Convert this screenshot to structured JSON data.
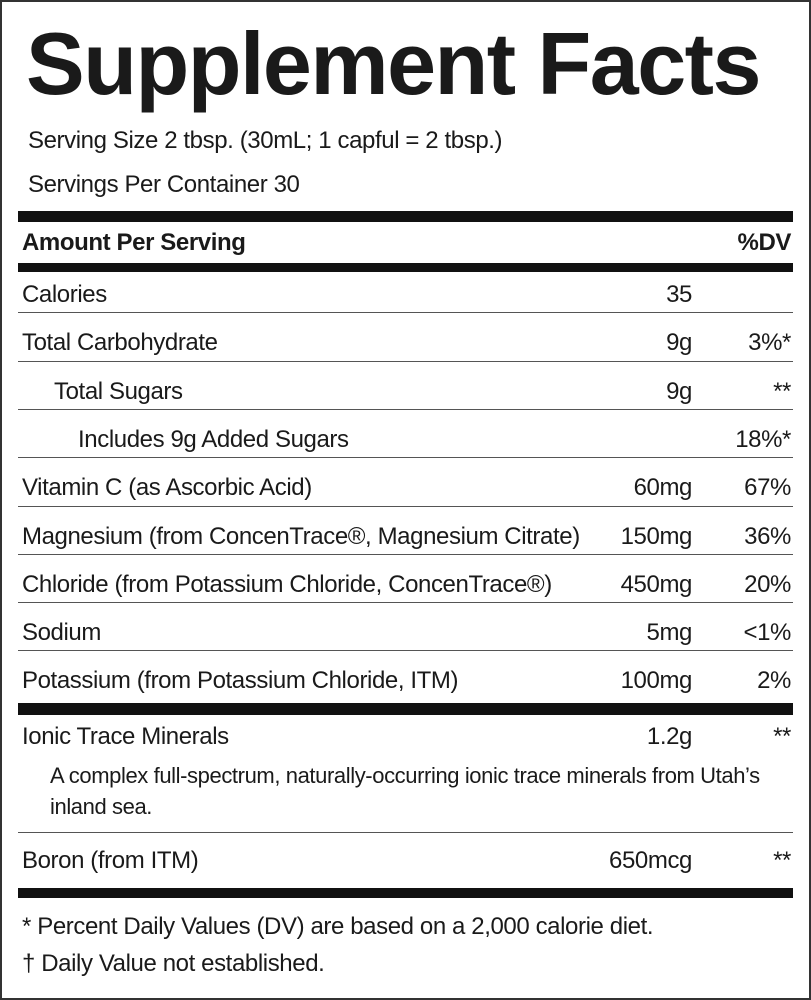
{
  "header": {
    "title": "Supplement Facts",
    "serving_size": "Serving Size 2 tbsp. (30mL; 1 capful = 2 tbsp.)",
    "servings_per_container": "Servings Per Container 30"
  },
  "table": {
    "header": {
      "label": "Amount Per Serving",
      "dv": "%DV"
    },
    "rows": [
      {
        "name": "Calories",
        "amount": "35"
      },
      {
        "name": "Total Carbohydrate",
        "amount": "9g",
        "dv": "3%*"
      },
      {
        "name": "Total Sugars",
        "amount": "9g",
        "dv": "**"
      },
      {
        "name": "Includes 9g Added Sugars",
        "dv": "18%*"
      },
      {
        "name": "Vitamin C (as Ascorbic Acid)",
        "amount": "60mg",
        "dv": "67%"
      },
      {
        "name": "Magnesium (from ConcenTrace®, Magnesium Citrate)",
        "amount": "150mg",
        "dv": "36%"
      },
      {
        "name": "Chloride (from Potassium Chloride, ConcenTrace®)",
        "amount": "450mg",
        "dv": "20%"
      },
      {
        "name": "Sodium",
        "amount": "5mg",
        "dv": "<1%"
      },
      {
        "name": "Potassium (from Potassium Chloride, ITM)",
        "amount": "100mg",
        "dv": "2%"
      }
    ],
    "other_rows": [
      {
        "name": "Ionic Trace Minerals",
        "amount": "1.2g",
        "dv": "**",
        "note": "A complex full-spectrum, naturally-occurring ionic trace minerals from Utah’s inland sea."
      },
      {
        "name": "Boron (from ITM)",
        "amount": "650mcg",
        "dv": "**"
      }
    ]
  },
  "footnotes": [
    "* Percent Daily Values (DV) are based on a 2,000 calorie diet.",
    "† Daily Value not established."
  ]
}
